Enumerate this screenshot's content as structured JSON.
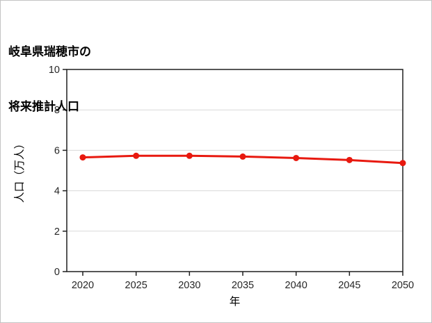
{
  "page": {
    "background": "#ffffff",
    "frame_border_color": "#c3c3c3"
  },
  "title": {
    "line1": "岐阜県瑞穂市の",
    "line2": "将来推計人口"
  },
  "chart_data": {
    "type": "line",
    "title": "岐阜県瑞穂市の将来推計人口",
    "x": [
      2020,
      2025,
      2030,
      2035,
      2040,
      2045,
      2050
    ],
    "series": [
      {
        "name": "将来推計人口",
        "values": [
          5.65,
          5.73,
          5.73,
          5.69,
          5.62,
          5.52,
          5.37
        ]
      }
    ],
    "xlabel": "年",
    "ylabel": "人口（万人）",
    "xlim": [
      2018.5,
      2050
    ],
    "ylim": [
      0,
      10
    ],
    "xticks": [
      2020,
      2025,
      2030,
      2035,
      2040,
      2045,
      2050
    ],
    "yticks": [
      0,
      2,
      4,
      6,
      8,
      10
    ],
    "grid": "horizontal",
    "gridline_color": "#d9d9d9",
    "axis_color": "#1f1f1f",
    "tick_label_color": "#262626",
    "line_color": "#e8190f",
    "marker": "circle",
    "legend": "none"
  }
}
